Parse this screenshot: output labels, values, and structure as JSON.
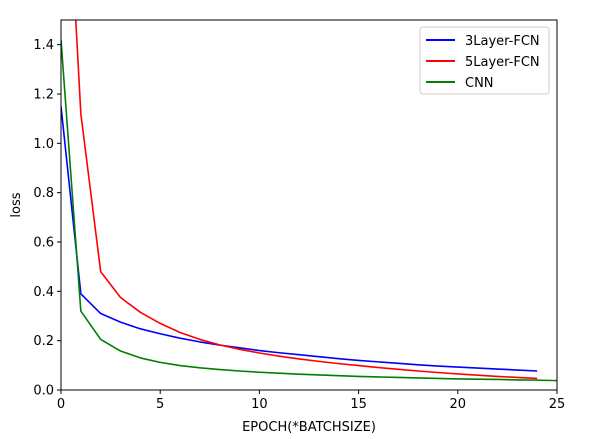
{
  "chart_data": {
    "type": "line",
    "title": "",
    "xlabel": "EPOCH(*BATCHSIZE)",
    "ylabel": "loss",
    "xlim": [
      0,
      25
    ],
    "ylim": [
      0,
      1.5
    ],
    "xticks": [
      0,
      5,
      10,
      15,
      20,
      25
    ],
    "yticks": [
      0.0,
      0.2,
      0.4,
      0.6,
      0.8,
      1.0,
      1.2,
      1.4
    ],
    "grid": false,
    "legend": "top-right",
    "series": [
      {
        "name": "3Layer-FCN",
        "color": "#0000ff",
        "x": [
          0,
          1,
          2,
          3,
          4,
          5,
          6,
          7,
          8,
          9,
          10,
          11,
          12,
          13,
          14,
          15,
          16,
          17,
          18,
          19,
          20,
          21,
          22,
          23,
          24
        ],
        "y": [
          1.15,
          0.39,
          0.31,
          0.275,
          0.248,
          0.228,
          0.21,
          0.195,
          0.182,
          0.171,
          0.16,
          0.151,
          0.143,
          0.135,
          0.127,
          0.12,
          0.114,
          0.108,
          0.102,
          0.097,
          0.093,
          0.089,
          0.085,
          0.081,
          0.077
        ]
      },
      {
        "name": "5Layer-FCN",
        "color": "#ff0000",
        "x": [
          0,
          1,
          2,
          3,
          4,
          5,
          6,
          7,
          8,
          9,
          10,
          11,
          12,
          13,
          14,
          15,
          16,
          17,
          18,
          19,
          20,
          21,
          22,
          23,
          24
        ],
        "y": [
          2.6,
          1.12,
          0.48,
          0.375,
          0.315,
          0.27,
          0.233,
          0.205,
          0.183,
          0.165,
          0.15,
          0.137,
          0.126,
          0.116,
          0.107,
          0.099,
          0.091,
          0.084,
          0.077,
          0.071,
          0.065,
          0.06,
          0.055,
          0.051,
          0.047
        ]
      },
      {
        "name": "CNN",
        "color": "#008000",
        "x": [
          0,
          1,
          2,
          3,
          4,
          5,
          6,
          7,
          8,
          9,
          10,
          11,
          12,
          13,
          14,
          15,
          16,
          17,
          18,
          19,
          20,
          21,
          22,
          23,
          24,
          25
        ],
        "y": [
          1.42,
          0.32,
          0.205,
          0.158,
          0.13,
          0.112,
          0.099,
          0.09,
          0.083,
          0.077,
          0.072,
          0.068,
          0.064,
          0.061,
          0.058,
          0.055,
          0.053,
          0.051,
          0.049,
          0.047,
          0.045,
          0.044,
          0.043,
          0.041,
          0.04,
          0.038
        ]
      }
    ]
  }
}
